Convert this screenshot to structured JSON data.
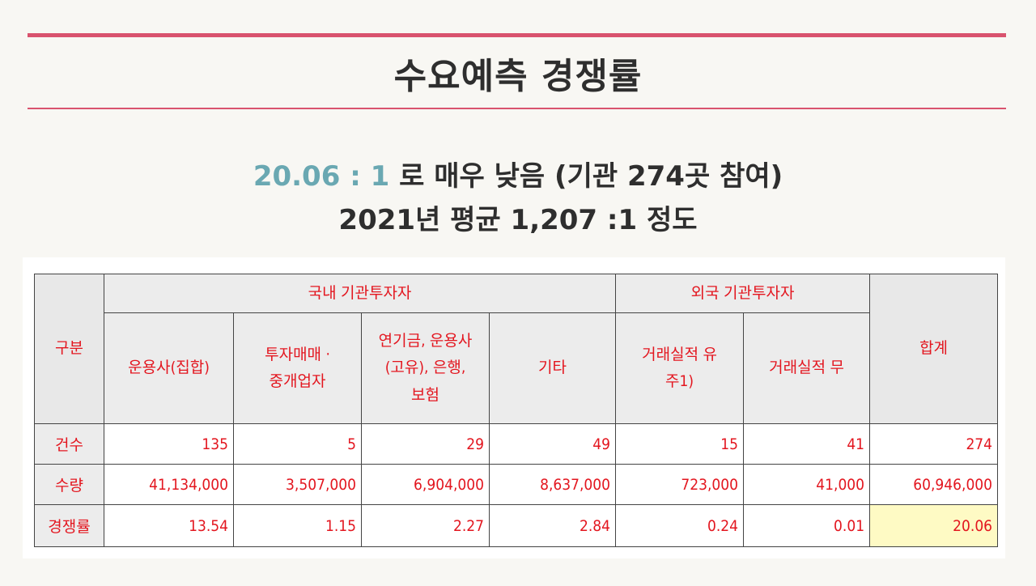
{
  "title": "수요예측 경쟁률",
  "summary": {
    "ratio_highlight": "20.06 : 1",
    "ratio_rest": " 로 매우 낮음 (기관 274곳 참여)",
    "average_line": "2021년 평균 1,207 :1 정도"
  },
  "table": {
    "corner_label": "구분",
    "domestic_group": "국내 기관투자자",
    "foreign_group": "외국 기관투자자",
    "total_label": "합계",
    "columns": [
      {
        "lines": [
          "운용사(집합)"
        ]
      },
      {
        "lines": [
          "투자매매 ·",
          "중개업자"
        ]
      },
      {
        "lines": [
          "연기금, 운용사",
          "(고유), 은행,",
          "보험"
        ]
      },
      {
        "lines": [
          "기타"
        ]
      },
      {
        "lines": [
          "거래실적 유",
          "주1)"
        ]
      },
      {
        "lines": [
          "거래실적 무"
        ]
      }
    ],
    "rows": [
      {
        "label": "건수",
        "values": [
          "135",
          "5",
          "29",
          "49",
          "15",
          "41",
          "274"
        ]
      },
      {
        "label": "수량",
        "values": [
          "41,134,000",
          "3,507,000",
          "6,904,000",
          "8,637,000",
          "723,000",
          "41,000",
          "60,946,000"
        ]
      },
      {
        "label": "경쟁률",
        "values": [
          "13.54",
          "1.15",
          "2.27",
          "2.84",
          "0.24",
          "0.01",
          "20.06"
        ]
      }
    ]
  },
  "colors": {
    "accent_line": "#d9536e",
    "highlight_text": "#6aa8b2",
    "table_text": "#e3161f",
    "total_highlight_bg": "#fefac4"
  }
}
